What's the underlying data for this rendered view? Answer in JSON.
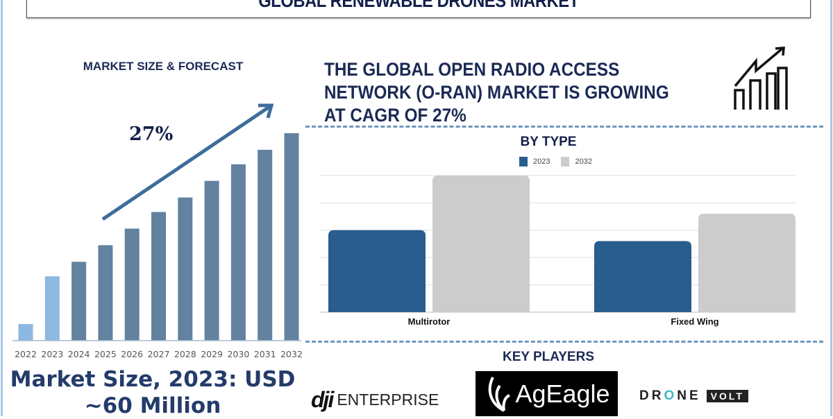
{
  "header": {
    "title": "GLOBAL RENEWABLE DRONES MARKET"
  },
  "left_panel": {
    "title": "MARKET SIZE & FORECAST",
    "cagr_label": "27%",
    "market_size_line1": "Market Size, 2023: USD",
    "market_size_line2": "~60 Million"
  },
  "right_panel": {
    "headline": [
      "THE GLOBAL OPEN RADIO ACCESS",
      "NETWORK (O-RAN) MARKET IS GROWING",
      "AT CAGR OF 27%"
    ],
    "trend_icon": "bar-chart-growth-arrow-icon",
    "key_players_title": "KEY PLAYERS",
    "key_players": [
      "dji ENTERPRISE",
      "AgEagle",
      "DRONE VOLT"
    ]
  },
  "colors": {
    "navy_text": "#1b2a55",
    "bar_light": "#8db8e0",
    "bar_dark": "#62829f",
    "series_2023": "#285d8e",
    "series_2032": "#cccccc",
    "dash": "#6f97bd"
  },
  "chart_data": [
    {
      "type": "bar",
      "title": "MARKET SIZE & FORECAST",
      "categories": [
        "2022",
        "2023",
        "2024",
        "2025",
        "2026",
        "2027",
        "2028",
        "2029",
        "2030",
        "2031",
        "2032"
      ],
      "values": [
        8,
        31,
        38,
        46,
        54,
        62,
        69,
        77,
        85,
        92,
        100
      ],
      "value_note_visible": false,
      "annotation": "27%",
      "highlighted_categories": [
        "2022",
        "2023"
      ],
      "grid": false,
      "ylim": [
        0,
        100
      ]
    },
    {
      "type": "bar",
      "title": "BY TYPE",
      "categories": [
        "Multirotor",
        "Fixed Wing"
      ],
      "series": [
        {
          "name": "2023",
          "values": [
            3.0,
            2.6
          ]
        },
        {
          "name": "2032",
          "values": [
            5.0,
            3.6
          ]
        }
      ],
      "ylim": [
        0,
        5
      ],
      "grid": true,
      "legend": "top-center"
    }
  ]
}
